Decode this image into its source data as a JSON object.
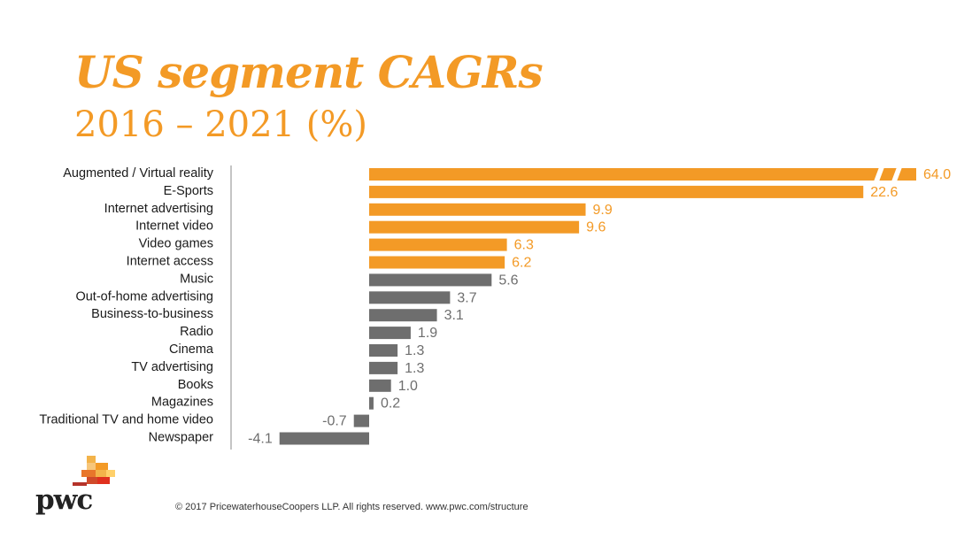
{
  "title": "US segment CAGRs",
  "subtitle": "2016 – 2021 (%)",
  "copyright": "© 2017 PricewaterhouseCoopers LLP. All rights reserved. www.pwc.com/structure",
  "logo": "pwc",
  "colors": {
    "accent": "#f39a26",
    "neutral": "#6e6e6e",
    "title": "#f39a26"
  },
  "chart_data": {
    "type": "bar",
    "orientation": "horizontal",
    "categories": [
      "Augmented / Virtual reality",
      "E-Sports",
      "Internet advertising",
      "Internet video",
      "Video games",
      "Internet access",
      "Music",
      "Out-of-home advertising",
      "Business-to-business",
      "Radio",
      "Cinema",
      "TV advertising",
      "Books",
      "Magazines",
      "Traditional TV and home video",
      "Newspaper"
    ],
    "values": [
      64.0,
      22.6,
      9.9,
      9.6,
      6.3,
      6.2,
      5.6,
      3.7,
      3.1,
      1.9,
      1.3,
      1.3,
      1.0,
      0.2,
      -0.7,
      -4.1
    ],
    "value_labels": [
      "64.0",
      "22.6",
      "9.9",
      "9.6",
      "6.3",
      "6.2",
      "5.6",
      "3.7",
      "3.1",
      "1.9",
      "1.3",
      "1.3",
      "1.0",
      "0.2",
      "-0.7",
      "-4.1"
    ],
    "highlighted": [
      true,
      true,
      true,
      true,
      true,
      true,
      false,
      false,
      false,
      false,
      false,
      false,
      false,
      false,
      false,
      false
    ],
    "axis_break": {
      "category": "Augmented / Virtual reality"
    },
    "grid": false,
    "legend": "none"
  }
}
